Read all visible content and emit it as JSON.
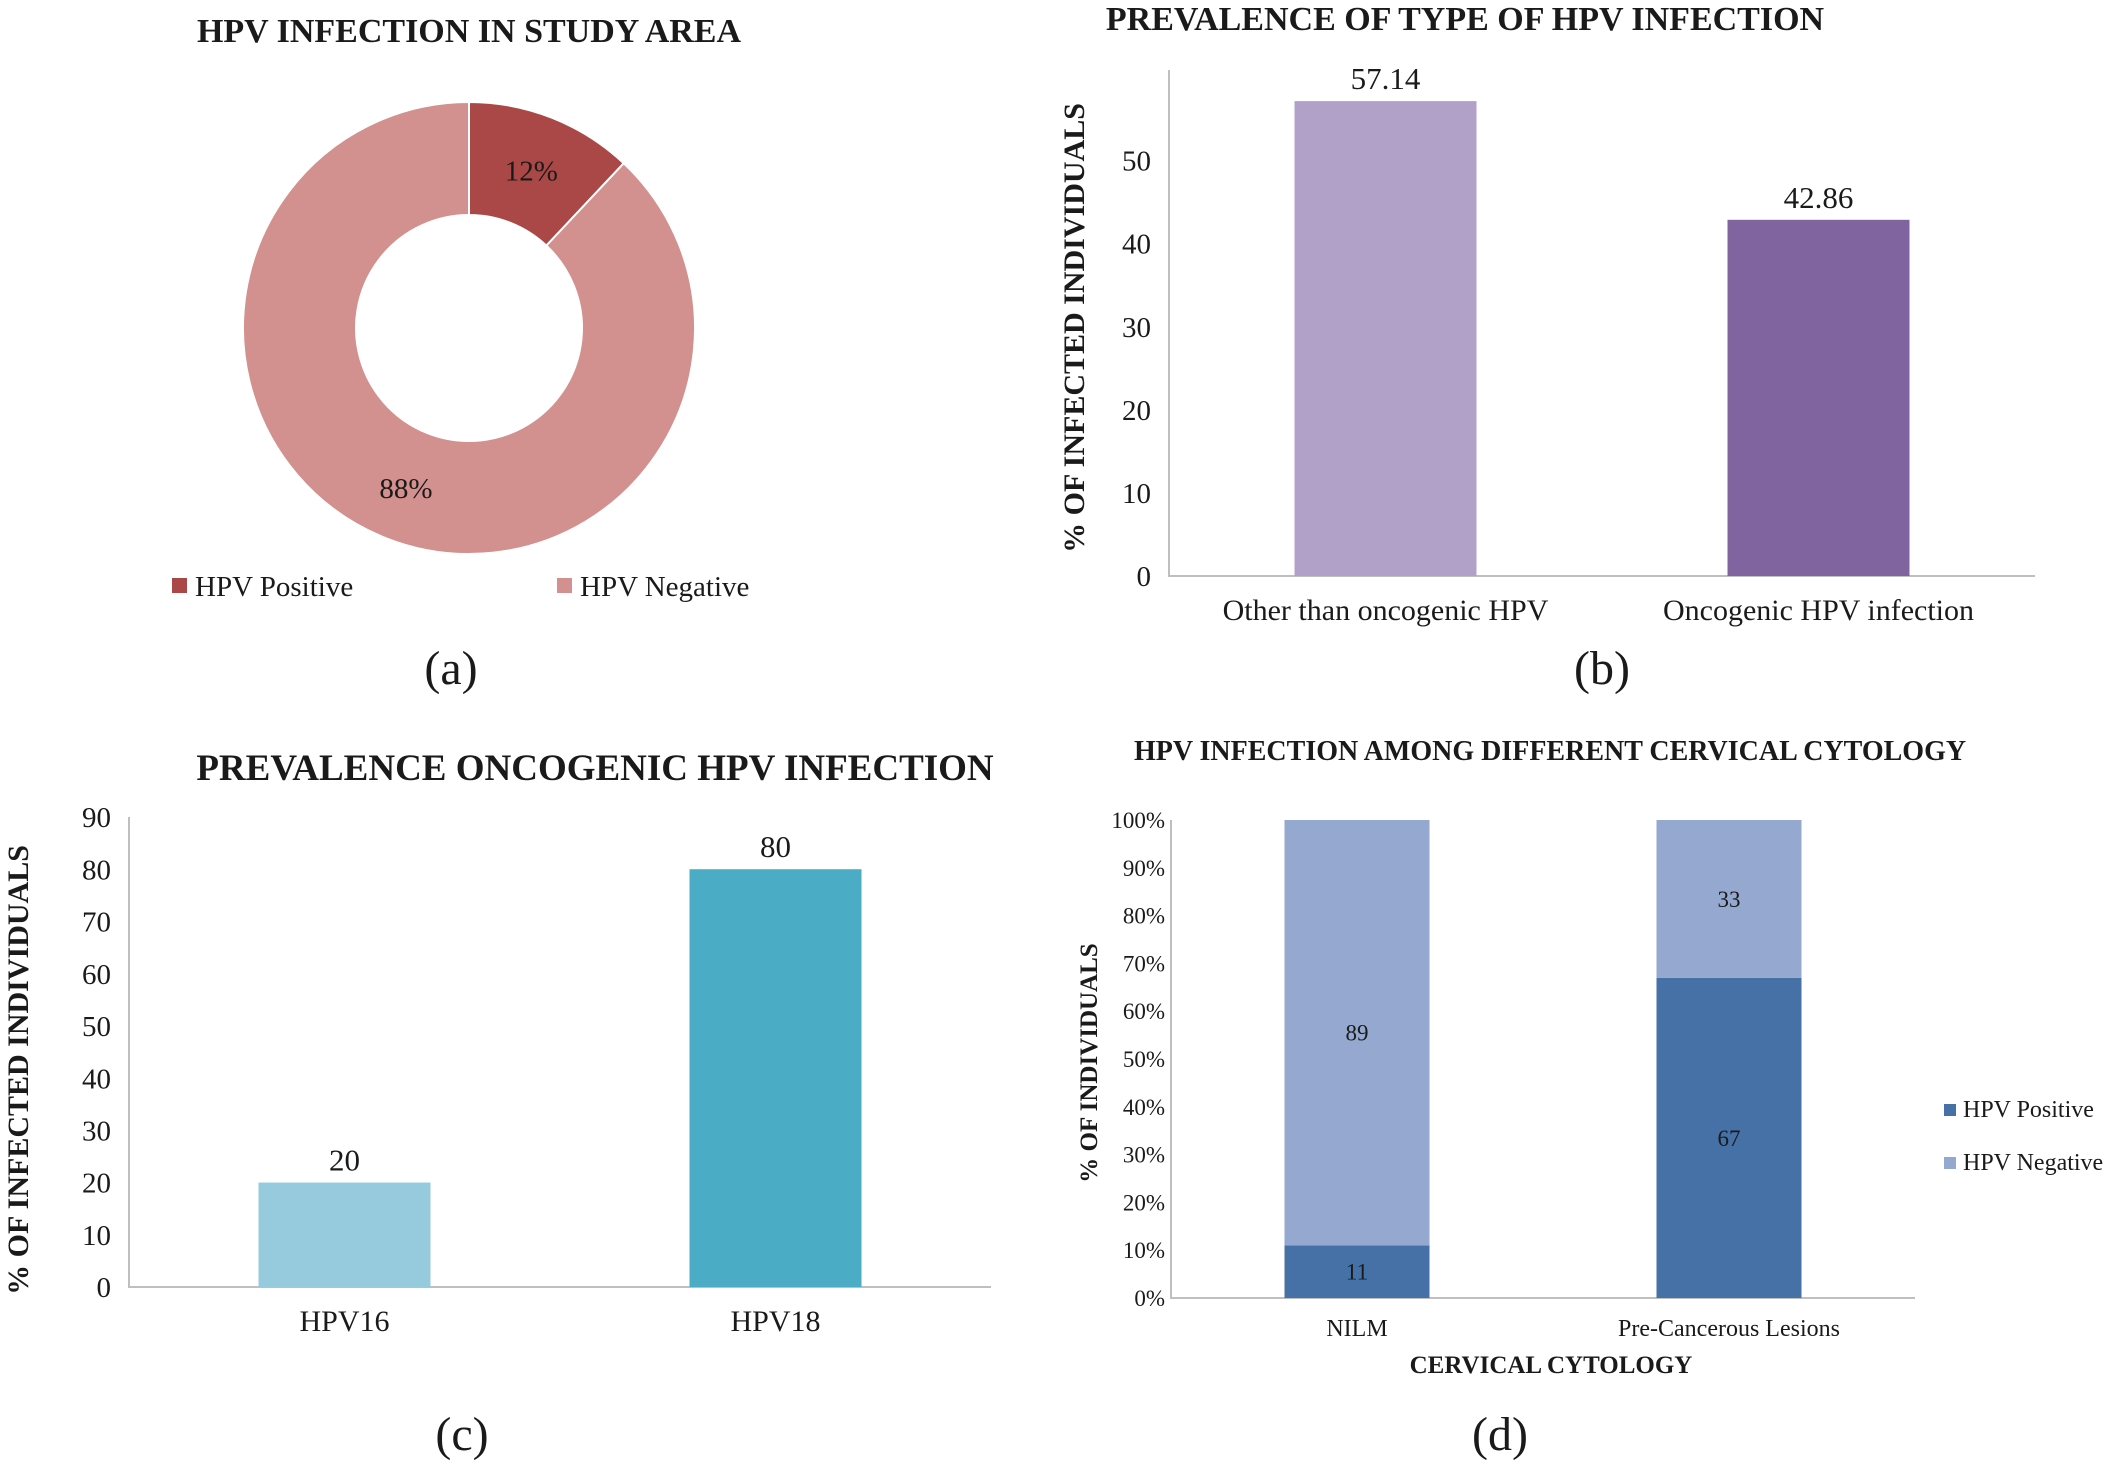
{
  "chart_data": [
    {
      "type": "pie",
      "variant": "donut",
      "title": "HPV INFECTION IN STUDY AREA",
      "panel_label": "(a)",
      "slices": [
        {
          "name": "HPV Positive",
          "value": 12,
          "label": "12%",
          "color": "#a94846"
        },
        {
          "name": "HPV Negative",
          "value": 88,
          "label": "88%",
          "color": "#d2908e"
        }
      ],
      "legend": "bottom"
    },
    {
      "type": "bar",
      "title": "PREVALENCE OF TYPE OF HPV INFECTION",
      "panel_label": "(b)",
      "categories": [
        "Other than oncogenic HPV",
        "Oncogenic HPV infection"
      ],
      "values": [
        57.14,
        42.86
      ],
      "data_labels": [
        "57.14",
        "42.86"
      ],
      "colors": [
        "#b1a1c8",
        "#8064a0"
      ],
      "xlabel": "",
      "ylabel": "% OF INFECTED INDIVIDUALS",
      "ylim": [
        0,
        60
      ],
      "yticks": [
        0,
        10,
        20,
        30,
        40,
        50
      ],
      "grid": false
    },
    {
      "type": "bar",
      "title": "PREVALENCE ONCOGENIC HPV INFECTION",
      "panel_label": "(c)",
      "categories": [
        "HPV16",
        "HPV18"
      ],
      "values": [
        20,
        80
      ],
      "data_labels": [
        "20",
        "80"
      ],
      "colors": [
        "#95cbdc",
        "#4aacc5"
      ],
      "xlabel": "",
      "ylabel": "% OF INFECTED INDIVIDUALS",
      "ylim": [
        0,
        90
      ],
      "yticks": [
        0,
        10,
        20,
        30,
        40,
        50,
        60,
        70,
        80,
        90
      ],
      "grid": false
    },
    {
      "type": "bar",
      "variant": "stacked-100",
      "title": "HPV INFECTION AMONG DIFFERENT CERVICAL CYTOLOGY",
      "panel_label": "(d)",
      "categories": [
        "NILM",
        "Pre-Cancerous Lesions"
      ],
      "series": [
        {
          "name": "HPV Positive",
          "values": [
            11,
            67
          ],
          "color": "#4571a6"
        },
        {
          "name": "HPV Negative",
          "values": [
            89,
            33
          ],
          "color": "#95a9d0"
        }
      ],
      "xlabel": "CERVICAL CYTOLOGY",
      "ylabel": "% OF INDIVIDUALS",
      "ylim": [
        0,
        100
      ],
      "yticks": [
        "0%",
        "10%",
        "20%",
        "30%",
        "40%",
        "50%",
        "60%",
        "70%",
        "80%",
        "90%",
        "100%"
      ],
      "legend": "right",
      "grid": false
    }
  ]
}
